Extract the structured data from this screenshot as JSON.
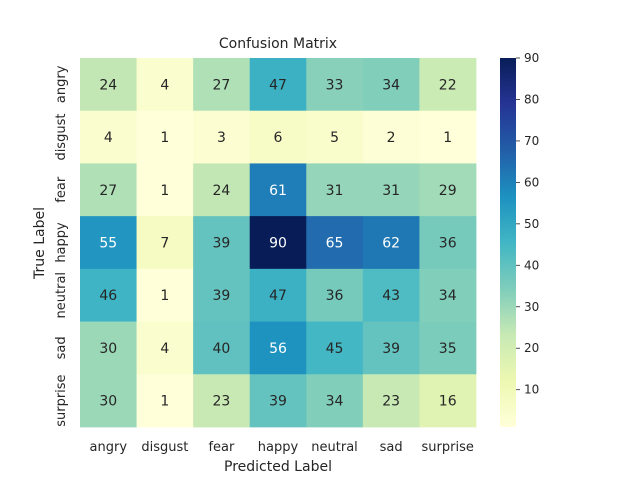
{
  "chart_data": {
    "type": "heatmap",
    "title": "Confusion Matrix",
    "xlabel": "Predicted Label",
    "ylabel": "True Label",
    "x_categories": [
      "angry",
      "disgust",
      "fear",
      "happy",
      "neutral",
      "sad",
      "surprise"
    ],
    "y_categories": [
      "angry",
      "disgust",
      "fear",
      "happy",
      "neutral",
      "sad",
      "surprise"
    ],
    "values": [
      [
        24,
        4,
        27,
        47,
        33,
        34,
        22
      ],
      [
        4,
        1,
        3,
        6,
        5,
        2,
        1
      ],
      [
        27,
        1,
        24,
        61,
        31,
        31,
        29
      ],
      [
        55,
        7,
        39,
        90,
        65,
        62,
        36
      ],
      [
        46,
        1,
        39,
        47,
        36,
        43,
        34
      ],
      [
        30,
        4,
        40,
        56,
        45,
        39,
        35
      ],
      [
        30,
        1,
        23,
        39,
        34,
        23,
        16
      ]
    ],
    "colormap": "YlGnBu",
    "colorbar": {
      "vmin": 1,
      "vmax": 90,
      "ticks": [
        10,
        20,
        30,
        40,
        50,
        60,
        70,
        80,
        90
      ]
    }
  }
}
